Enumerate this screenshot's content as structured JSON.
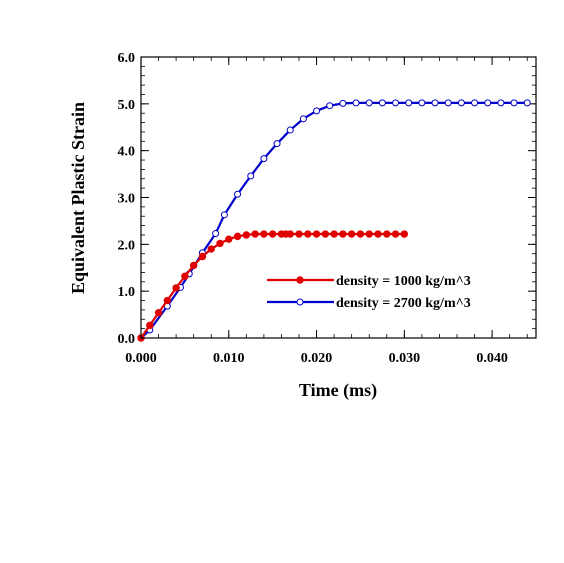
{
  "chart_data": {
    "type": "line",
    "xlabel": "Time (ms)",
    "ylabel": "Equivalent Plastic Strain",
    "xlim": [
      0.0,
      0.045
    ],
    "ylim": [
      0.0,
      6.0
    ],
    "x_ticks": [
      {
        "value": 0.0,
        "label": "0.000"
      },
      {
        "value": 0.01,
        "label": "0.010"
      },
      {
        "value": 0.02,
        "label": "0.020"
      },
      {
        "value": 0.03,
        "label": "0.030"
      },
      {
        "value": 0.04,
        "label": "0.040"
      }
    ],
    "y_ticks": [
      {
        "value": 0.0,
        "label": "0.0"
      },
      {
        "value": 1.0,
        "label": "1.0"
      },
      {
        "value": 2.0,
        "label": "2.0"
      },
      {
        "value": 3.0,
        "label": "3.0"
      },
      {
        "value": 4.0,
        "label": "4.0"
      },
      {
        "value": 5.0,
        "label": "5.0"
      },
      {
        "value": 6.0,
        "label": "6.0"
      }
    ],
    "grid": false,
    "legend_position": "lower-right",
    "series": [
      {
        "name": "density = 1000 kg/m^3",
        "color": "#e00000",
        "marker": "filled-circle",
        "x": [
          0.0,
          0.001,
          0.002,
          0.003,
          0.004,
          0.005,
          0.006,
          0.007,
          0.008,
          0.009,
          0.01,
          0.011,
          0.012,
          0.013,
          0.014,
          0.015,
          0.016,
          0.0165,
          0.017,
          0.018,
          0.019,
          0.02,
          0.021,
          0.022,
          0.023,
          0.024,
          0.025,
          0.026,
          0.027,
          0.028,
          0.029,
          0.03
        ],
        "y": [
          0.0,
          0.27,
          0.54,
          0.8,
          1.07,
          1.32,
          1.55,
          1.74,
          1.9,
          2.02,
          2.11,
          2.17,
          2.2,
          2.22,
          2.22,
          2.22,
          2.22,
          2.22,
          2.22,
          2.22,
          2.22,
          2.22,
          2.22,
          2.22,
          2.22,
          2.22,
          2.22,
          2.22,
          2.22,
          2.22,
          2.22,
          2.22
        ]
      },
      {
        "name": "density = 2700 kg/m^3",
        "color": "#0000cc",
        "marker": "open-circle",
        "x": [
          0.0,
          0.001,
          0.003,
          0.0045,
          0.0055,
          0.007,
          0.0085,
          0.0095,
          0.011,
          0.0125,
          0.014,
          0.0155,
          0.017,
          0.0185,
          0.02,
          0.0215,
          0.023,
          0.0245,
          0.026,
          0.0275,
          0.029,
          0.0305,
          0.032,
          0.0335,
          0.035,
          0.0365,
          0.038,
          0.0395,
          0.041,
          0.0425,
          0.044
        ],
        "y": [
          0.0,
          0.17,
          0.68,
          1.08,
          1.37,
          1.82,
          2.23,
          2.63,
          3.07,
          3.46,
          3.83,
          4.15,
          4.44,
          4.68,
          4.85,
          4.96,
          5.01,
          5.02,
          5.02,
          5.02,
          5.02,
          5.02,
          5.02,
          5.02,
          5.02,
          5.02,
          5.02,
          5.02,
          5.02,
          5.02,
          5.02
        ]
      }
    ]
  }
}
